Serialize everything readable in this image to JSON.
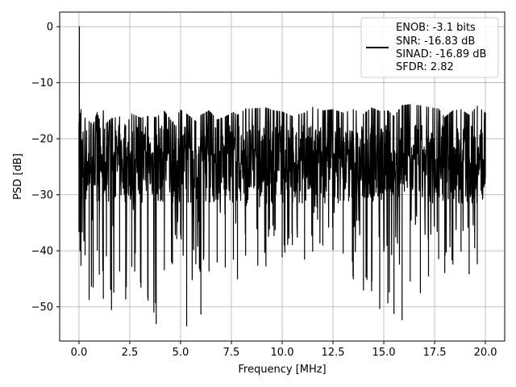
{
  "chart_data": {
    "type": "line",
    "title": "",
    "xlabel": "Frequency [MHz]",
    "ylabel": "PSD [dB]",
    "xlim": [
      -0.95,
      20.95
    ],
    "ylim": [
      -56.1,
      2.6
    ],
    "x_ticks": [
      0.0,
      2.5,
      5.0,
      7.5,
      10.0,
      12.5,
      15.0,
      17.5,
      20.0
    ],
    "x_tick_labels": [
      "0.0",
      "2.5",
      "5.0",
      "7.5",
      "10.0",
      "12.5",
      "15.0",
      "17.5",
      "20.0"
    ],
    "y_ticks": [
      0,
      -10,
      -20,
      -30,
      -40,
      -50
    ],
    "y_tick_labels": [
      "0",
      "−10",
      "−20",
      "−30",
      "−40",
      "−50"
    ],
    "grid": true,
    "legend": {
      "placement": "top-right",
      "lines": [
        "ENOB: -3.1 bits",
        "SNR: -16.83 dB",
        "SINAD: -16.89 dB",
        "SFDR: 2.82"
      ]
    },
    "series": [
      {
        "color": "#000000",
        "description": "dense noisy spectrum: spike to 0 dB at 0 MHz, noise floor roughly -15 to -40 dB across 0-20 MHz",
        "x": [
          0.0,
          0.02,
          0.05,
          0.1,
          0.3,
          0.5,
          0.7,
          0.9,
          1.0,
          1.2,
          1.35,
          1.6,
          2.0,
          2.3,
          2.6,
          3.05,
          3.4,
          3.8,
          4.2,
          4.6,
          5.0,
          5.3,
          5.75,
          6.0,
          6.4,
          6.8,
          7.2,
          7.6,
          7.8,
          8.2,
          8.8,
          9.2,
          9.6,
          10.0,
          10.5,
          11.1,
          11.5,
          12.0,
          12.5,
          13.0,
          13.5,
          14.0,
          14.4,
          14.8,
          15.2,
          15.5,
          15.9,
          16.3,
          16.8,
          17.2,
          17.7,
          18.0,
          18.4,
          18.8,
          19.2,
          19.6,
          20.0
        ],
        "peaks": [
          -17.0,
          0.0,
          -15.5,
          -14.8,
          -16.3,
          -16.9,
          -17.5,
          -15.3,
          -16.6,
          -15.0,
          -17.2,
          -16.4,
          -16.1,
          -17.7,
          -15.6,
          -16.3,
          -16.0,
          -16.2,
          -15.1,
          -17.1,
          -14.9,
          -15.6,
          -16.9,
          -15.8,
          -15.0,
          -16.6,
          -16.1,
          -15.3,
          -15.8,
          -14.7,
          -14.6,
          -14.5,
          -15.0,
          -15.2,
          -16.0,
          -15.4,
          -14.4,
          -15.0,
          -14.8,
          -15.4,
          -14.8,
          -15.6,
          -14.5,
          -15.1,
          -15.0,
          -16.0,
          -14.1,
          -13.9,
          -14.1,
          -14.4,
          -14.7,
          -16.2,
          -15.0,
          -14.8,
          -15.8,
          -14.2,
          -15.4
        ],
        "troughs": [
          -36.6,
          -17.8,
          -40.0,
          -42.6,
          -40.7,
          -48.7,
          -46.5,
          -39.9,
          -44.2,
          -48.5,
          -40.9,
          -50.5,
          -43.6,
          -48.6,
          -42.8,
          -46.5,
          -48.8,
          -53.0,
          -43.4,
          -42.3,
          -37.1,
          -53.4,
          -42.3,
          -51.3,
          -43.6,
          -42.0,
          -42.9,
          -41.5,
          -45.0,
          -40.8,
          -42.6,
          -42.7,
          -37.3,
          -41.1,
          -38.9,
          -41.5,
          -40.1,
          -39.0,
          -39.8,
          -40.4,
          -45.0,
          -47.0,
          -47.1,
          -50.3,
          -49.3,
          -51.2,
          -52.3,
          -45.4,
          -47.5,
          -44.5,
          -41.4,
          -43.9,
          -42.4,
          -40.1,
          -44.1,
          -42.3,
          -27.0
        ]
      }
    ]
  }
}
